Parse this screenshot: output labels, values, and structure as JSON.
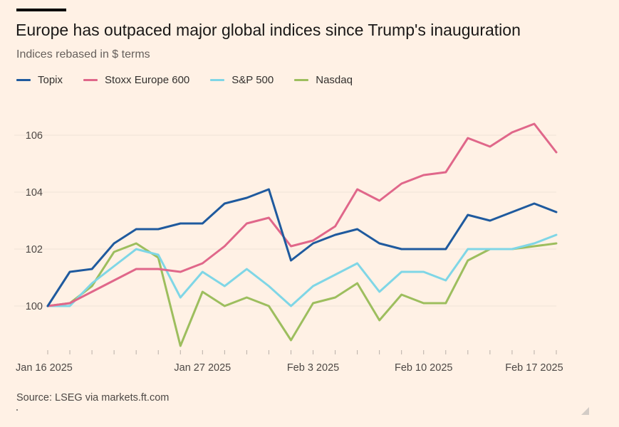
{
  "title": "Europe has outpaced major global indices since Trump's inauguration",
  "subtitle": "Indices rebased in $ terms",
  "source": "Source: LSEG via markets.ft.com",
  "colors": {
    "background": "#FFF1E5",
    "gridline": "#EFE3D8",
    "tick": "#B8AFA8"
  },
  "legend": [
    {
      "name": "Topix",
      "color": "#1F5A9E"
    },
    {
      "name": "Stoxx Europe 600",
      "color": "#E0678A"
    },
    {
      "name": "S&P 500",
      "color": "#7FD6E6"
    },
    {
      "name": "Nasdaq",
      "color": "#9DBE5E"
    }
  ],
  "chart_data": {
    "type": "line",
    "title": "Europe has outpaced major global indices since Trump's inauguration",
    "subtitle": "Indices rebased in $ terms",
    "xlabel": "",
    "ylabel": "",
    "x": [
      "Jan 16 2025",
      "Jan 17 2025",
      "Jan 20 2025",
      "Jan 21 2025",
      "Jan 22 2025",
      "Jan 23 2025",
      "Jan 24 2025",
      "Jan 27 2025",
      "Jan 28 2025",
      "Jan 29 2025",
      "Jan 30 2025",
      "Jan 31 2025",
      "Feb 3 2025",
      "Feb 4 2025",
      "Feb 5 2025",
      "Feb 6 2025",
      "Feb 7 2025",
      "Feb 10 2025",
      "Feb 11 2025",
      "Feb 12 2025",
      "Feb 13 2025",
      "Feb 14 2025",
      "Feb 17 2025",
      "Feb 18 2025"
    ],
    "x_tick_labels": [
      "Jan 16 2025",
      "Jan 27 2025",
      "Feb 3 2025",
      "Feb 10 2025",
      "Feb 17 2025"
    ],
    "y_ticks": [
      100,
      102,
      104,
      106
    ],
    "ylim": [
      98.5,
      107.5
    ],
    "grid": true,
    "legend_position": "top-left",
    "series": [
      {
        "name": "Topix",
        "values": [
          100,
          101.2,
          101.3,
          102.2,
          102.7,
          102.7,
          102.9,
          102.9,
          103.6,
          103.8,
          104.1,
          101.6,
          102.2,
          102.5,
          102.7,
          102.2,
          102.0,
          102.0,
          102.0,
          103.2,
          103.0,
          103.3,
          103.6,
          103.3
        ]
      },
      {
        "name": "Stoxx Europe 600",
        "values": [
          100,
          100.1,
          100.5,
          100.9,
          101.3,
          101.3,
          101.2,
          101.5,
          102.1,
          102.9,
          103.1,
          102.1,
          102.3,
          102.8,
          104.1,
          103.7,
          104.3,
          104.6,
          104.7,
          105.9,
          105.6,
          106.1,
          106.4,
          105.4
        ]
      },
      {
        "name": "S&P 500",
        "values": [
          100,
          100.0,
          100.8,
          101.4,
          102.0,
          101.8,
          100.3,
          101.2,
          100.7,
          101.3,
          100.7,
          100.0,
          100.7,
          101.1,
          101.5,
          100.5,
          101.2,
          101.2,
          100.9,
          102.0,
          102.0,
          102.0,
          102.2,
          102.5
        ]
      },
      {
        "name": "Nasdaq",
        "values": [
          100,
          100.1,
          100.7,
          101.9,
          102.2,
          101.7,
          98.6,
          100.5,
          100.0,
          100.3,
          100.0,
          98.8,
          100.1,
          100.3,
          100.8,
          99.5,
          100.4,
          100.1,
          100.1,
          101.6,
          102.0,
          102.0,
          102.1,
          102.2
        ]
      }
    ]
  }
}
